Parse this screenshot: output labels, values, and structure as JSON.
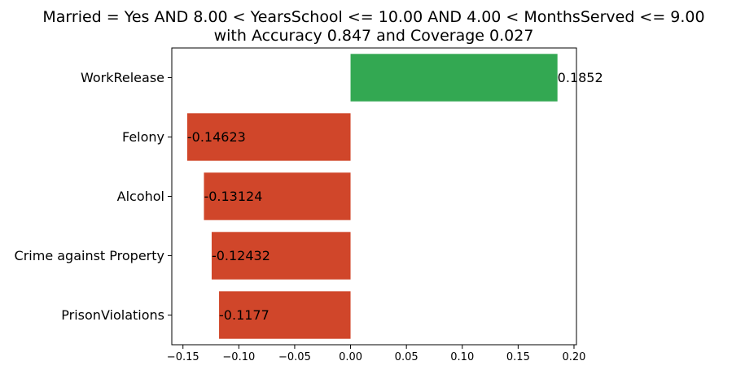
{
  "chart_data": {
    "type": "bar",
    "orientation": "horizontal",
    "title_line1": "Married = Yes AND 8.00 < YearsSchool <= 10.00 AND 4.00 < MonthsServed <= 9.00",
    "title_line2": "with Accuracy 0.847 and Coverage 0.027",
    "categories": [
      "WorkRelease",
      "Felony",
      "Alcohol",
      "Crime against Property",
      "PrisonViolations"
    ],
    "values": [
      0.1852,
      -0.14623,
      -0.13124,
      -0.12432,
      -0.1177
    ],
    "value_labels": [
      "0.1852",
      "-0.14623",
      "-0.13124",
      "-0.12432",
      "-0.1177"
    ],
    "xticks": [
      -0.15,
      -0.1,
      -0.05,
      0.0,
      0.05,
      0.1,
      0.15,
      0.2
    ],
    "xtick_labels": [
      "−0.15",
      "−0.10",
      "−0.05",
      "0.00",
      "0.05",
      "0.10",
      "0.15",
      "0.20"
    ],
    "xlim": [
      -0.16,
      0.2022
    ],
    "xlabel": "",
    "ylabel": "",
    "grid": false,
    "legend": "none",
    "colors": {
      "positive": "#33a852",
      "negative": "#d0462a"
    }
  }
}
